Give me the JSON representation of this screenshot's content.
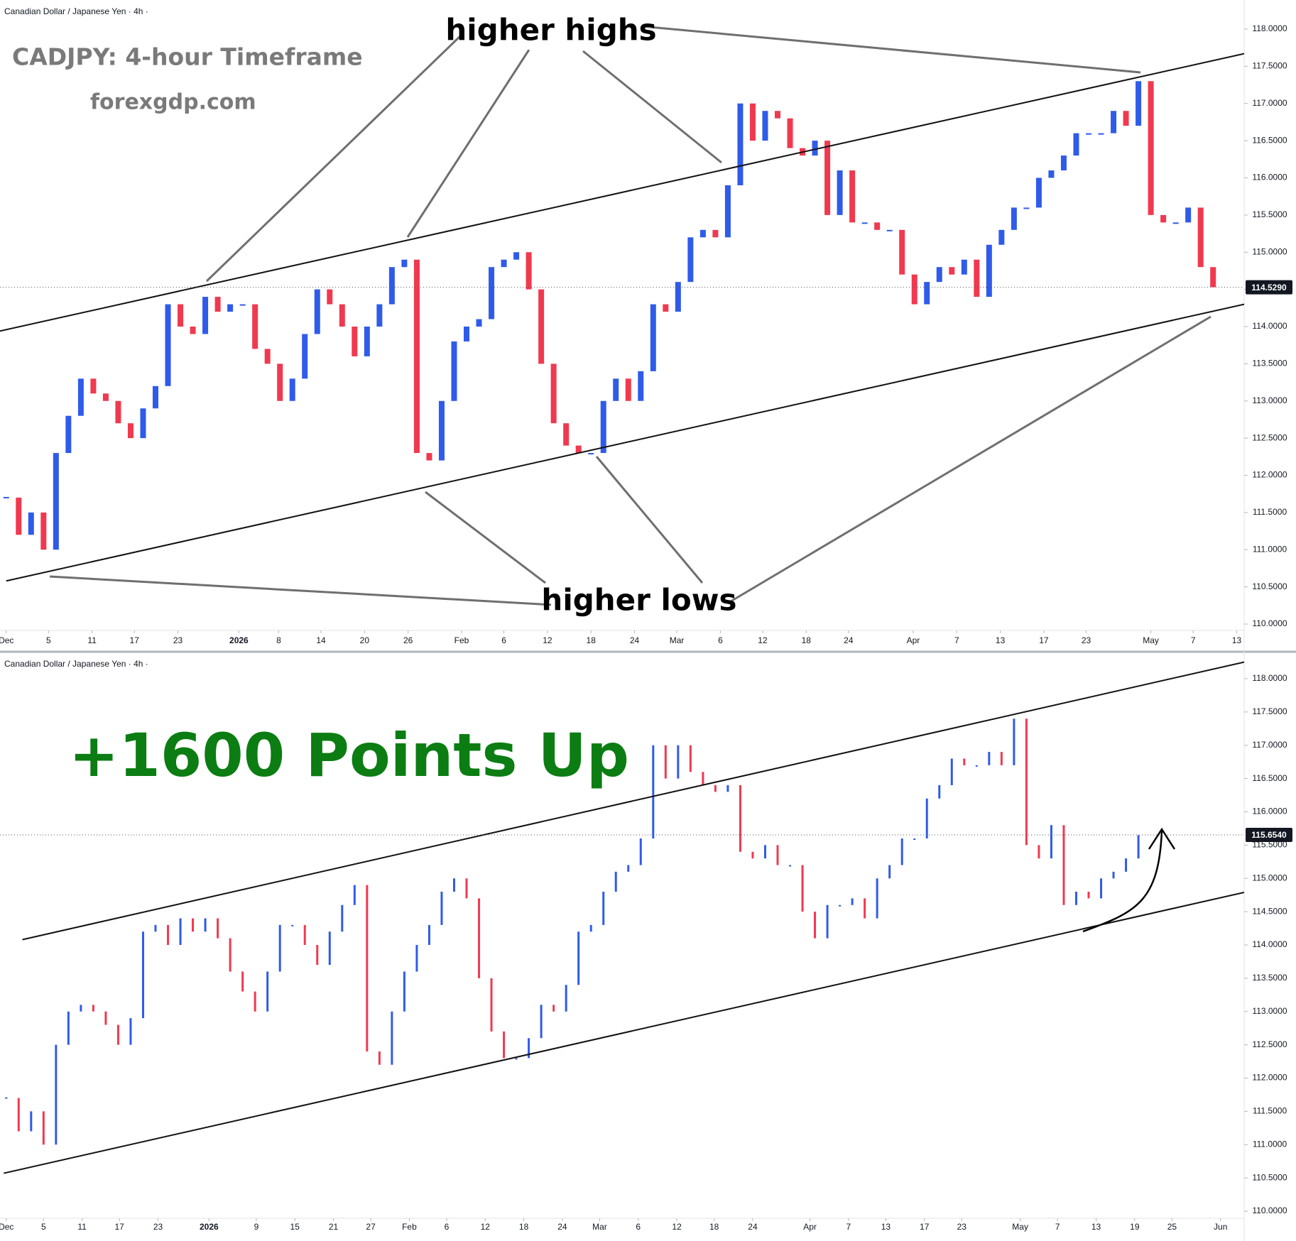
{
  "chart_data": [
    {
      "type": "candlestick",
      "header": "Canadian Dollar / Japanese Yen · 4h ·",
      "title": "CADJPY: 4-hour Timeframe",
      "subtitle": "forexgdp.com",
      "annotations": [
        "higher highs",
        "higher lows"
      ],
      "up_color": "#2f5bea",
      "down_color": "#f0394f",
      "xlim": [
        0,
        100
      ],
      "xticks": [
        {
          "value": 0.5,
          "label": "Dec"
        },
        {
          "value": 3.9,
          "label": "5"
        },
        {
          "value": 7.4,
          "label": "11"
        },
        {
          "value": 10.8,
          "label": "17"
        },
        {
          "value": 14.3,
          "label": "23"
        },
        {
          "value": 19.2,
          "label": "2026"
        },
        {
          "value": 22.4,
          "label": "8"
        },
        {
          "value": 25.8,
          "label": "14"
        },
        {
          "value": 29.3,
          "label": "20"
        },
        {
          "value": 32.8,
          "label": "26"
        },
        {
          "value": 37.1,
          "label": "Feb"
        },
        {
          "value": 40.5,
          "label": "6"
        },
        {
          "value": 44,
          "label": "12"
        },
        {
          "value": 47.5,
          "label": "18"
        },
        {
          "value": 51,
          "label": "24"
        },
        {
          "value": 54.4,
          "label": "Mar"
        },
        {
          "value": 57.9,
          "label": "6"
        },
        {
          "value": 61.3,
          "label": "12"
        },
        {
          "value": 64.8,
          "label": "18"
        },
        {
          "value": 68.2,
          "label": "24"
        },
        {
          "value": 73.4,
          "label": "Apr"
        },
        {
          "value": 76.9,
          "label": "7"
        },
        {
          "value": 80.4,
          "label": "13"
        },
        {
          "value": 83.9,
          "label": "17"
        },
        {
          "value": 87.3,
          "label": "23"
        },
        {
          "value": 92.5,
          "label": "May"
        },
        {
          "value": 95.9,
          "label": "7"
        },
        {
          "value": 99.4,
          "label": "13"
        }
      ],
      "ylim": [
        110,
        118
      ],
      "yticks": [
        {
          "value": 110,
          "label": "110.0000"
        },
        {
          "value": 110.5,
          "label": "110.5000"
        },
        {
          "value": 111,
          "label": "111.0000"
        },
        {
          "value": 111.5,
          "label": "111.5000"
        },
        {
          "value": 112,
          "label": "112.0000"
        },
        {
          "value": 112.5,
          "label": "112.5000"
        },
        {
          "value": 113,
          "label": "113.0000"
        },
        {
          "value": 113.5,
          "label": "113.5000"
        },
        {
          "value": 114,
          "label": "114.0000"
        },
        {
          "value": 114.5,
          "label": "114.5000"
        },
        {
          "value": 115,
          "label": "115.0000"
        },
        {
          "value": 115.5,
          "label": "115.5000"
        },
        {
          "value": 116,
          "label": "116.0000"
        },
        {
          "value": 116.5,
          "label": "116.5000"
        },
        {
          "value": 117,
          "label": "117.0000"
        },
        {
          "value": 117.5,
          "label": "117.5000"
        },
        {
          "value": 118,
          "label": "118.0000"
        }
      ],
      "values": [
        111.7,
        111.2,
        111.5,
        111.0,
        112.3,
        112.8,
        113.3,
        113.1,
        113.0,
        112.7,
        112.5,
        112.9,
        113.2,
        114.3,
        114.0,
        113.9,
        114.4,
        114.2,
        114.3,
        114.3,
        113.7,
        113.5,
        113.0,
        113.3,
        113.9,
        114.5,
        114.3,
        114.0,
        113.6,
        114.0,
        114.3,
        114.8,
        114.9,
        112.3,
        112.2,
        113.0,
        113.8,
        114.0,
        114.1,
        114.8,
        114.9,
        115.0,
        114.5,
        113.5,
        112.7,
        112.4,
        112.3,
        112.3,
        113.0,
        113.3,
        113.0,
        113.4,
        114.3,
        114.2,
        114.6,
        115.2,
        115.3,
        115.2,
        115.9,
        117.0,
        116.5,
        116.9,
        116.8,
        116.4,
        116.3,
        116.5,
        115.5,
        116.1,
        115.4,
        115.4,
        115.3,
        115.3,
        114.7,
        114.3,
        114.6,
        114.8,
        114.7,
        114.9,
        114.4,
        115.1,
        115.3,
        115.6,
        115.6,
        116.0,
        116.1,
        116.3,
        116.6,
        116.6,
        116.6,
        116.9,
        116.7,
        117.3,
        115.5,
        115.4,
        115.4,
        115.6,
        114.8,
        114.53,
        null,
        null
      ],
      "last_price": {
        "value": 114.529,
        "label": "114.5290"
      },
      "trendlines": [
        {
          "x": [
            0,
            100
          ],
          "y": [
            113.94,
            117.67
          ]
        },
        {
          "x": [
            0.5,
            100
          ],
          "y": [
            110.58,
            114.3
          ]
        }
      ]
    },
    {
      "type": "candlestick",
      "header": "Canadian Dollar / Japanese Yen · 4h ·",
      "title": "+1600 Points Up",
      "up_color": "#2f5bea",
      "down_color": "#f0394f",
      "xlim": [
        0,
        100
      ],
      "xticks": [
        {
          "value": 0.5,
          "label": "Dec"
        },
        {
          "value": 3.5,
          "label": "5"
        },
        {
          "value": 6.6,
          "label": "11"
        },
        {
          "value": 9.6,
          "label": "17"
        },
        {
          "value": 12.7,
          "label": "23"
        },
        {
          "value": 16.8,
          "label": "2026"
        },
        {
          "value": 20.6,
          "label": "9"
        },
        {
          "value": 23.7,
          "label": "15"
        },
        {
          "value": 26.8,
          "label": "21"
        },
        {
          "value": 29.8,
          "label": "27"
        },
        {
          "value": 32.9,
          "label": "Feb"
        },
        {
          "value": 35.9,
          "label": "6"
        },
        {
          "value": 39,
          "label": "12"
        },
        {
          "value": 42.1,
          "label": "18"
        },
        {
          "value": 45.2,
          "label": "24"
        },
        {
          "value": 48.2,
          "label": "Mar"
        },
        {
          "value": 51.3,
          "label": "6"
        },
        {
          "value": 54.4,
          "label": "12"
        },
        {
          "value": 57.4,
          "label": "18"
        },
        {
          "value": 60.5,
          "label": "24"
        },
        {
          "value": 65.1,
          "label": "Apr"
        },
        {
          "value": 68.2,
          "label": "7"
        },
        {
          "value": 71.2,
          "label": "13"
        },
        {
          "value": 74.3,
          "label": "17"
        },
        {
          "value": 77.3,
          "label": "23"
        },
        {
          "value": 82,
          "label": "May"
        },
        {
          "value": 85,
          "label": "7"
        },
        {
          "value": 88.1,
          "label": "13"
        },
        {
          "value": 91.2,
          "label": "19"
        },
        {
          "value": 94.2,
          "label": "25"
        },
        {
          "value": 98.1,
          "label": "Jun"
        }
      ],
      "ylim": [
        110,
        118
      ],
      "yticks": [
        {
          "value": 110,
          "label": "110.0000"
        },
        {
          "value": 110.5,
          "label": "110.5000"
        },
        {
          "value": 111,
          "label": "111.0000"
        },
        {
          "value": 111.5,
          "label": "111.5000"
        },
        {
          "value": 112,
          "label": "112.0000"
        },
        {
          "value": 112.5,
          "label": "112.5000"
        },
        {
          "value": 113,
          "label": "113.0000"
        },
        {
          "value": 113.5,
          "label": "113.5000"
        },
        {
          "value": 114,
          "label": "114.0000"
        },
        {
          "value": 114.5,
          "label": "114.5000"
        },
        {
          "value": 115,
          "label": "115.0000"
        },
        {
          "value": 115.5,
          "label": "115.5000"
        },
        {
          "value": 116,
          "label": "116.0000"
        },
        {
          "value": 116.5,
          "label": "116.5000"
        },
        {
          "value": 117,
          "label": "117.0000"
        },
        {
          "value": 117.5,
          "label": "117.5000"
        },
        {
          "value": 118,
          "label": "118.0000"
        }
      ],
      "values": [
        111.7,
        111.2,
        111.5,
        111.0,
        112.5,
        113.0,
        113.1,
        113.0,
        112.8,
        112.5,
        112.9,
        114.2,
        114.3,
        114.0,
        114.4,
        114.2,
        114.4,
        114.1,
        113.6,
        113.3,
        113.0,
        113.6,
        114.3,
        114.3,
        114.0,
        113.7,
        114.2,
        114.6,
        114.9,
        112.4,
        112.2,
        113.0,
        113.6,
        114.0,
        114.3,
        114.8,
        115.0,
        114.7,
        113.5,
        112.7,
        112.3,
        112.3,
        112.6,
        113.1,
        113.0,
        113.4,
        114.2,
        114.3,
        114.8,
        115.1,
        115.2,
        115.6,
        117.0,
        116.5,
        117.0,
        116.6,
        116.4,
        116.3,
        116.4,
        115.4,
        115.3,
        115.5,
        115.2,
        115.2,
        114.5,
        114.1,
        114.6,
        114.6,
        114.7,
        114.4,
        115.0,
        115.2,
        115.6,
        115.6,
        116.2,
        116.4,
        116.8,
        116.7,
        116.7,
        116.9,
        116.7,
        117.4,
        115.5,
        115.3,
        115.8,
        114.6,
        114.8,
        114.7,
        115.0,
        115.1,
        115.3,
        115.65,
        null,
        null,
        null,
        null,
        null,
        null,
        null,
        null
      ],
      "last_price": {
        "value": 115.654,
        "label": "115.6540"
      },
      "trendlines": [
        {
          "x": [
            1.8,
            100
          ],
          "y": [
            114.08,
            118.25
          ]
        },
        {
          "x": [
            0.3,
            100
          ],
          "y": [
            110.57,
            114.79
          ]
        }
      ]
    }
  ]
}
